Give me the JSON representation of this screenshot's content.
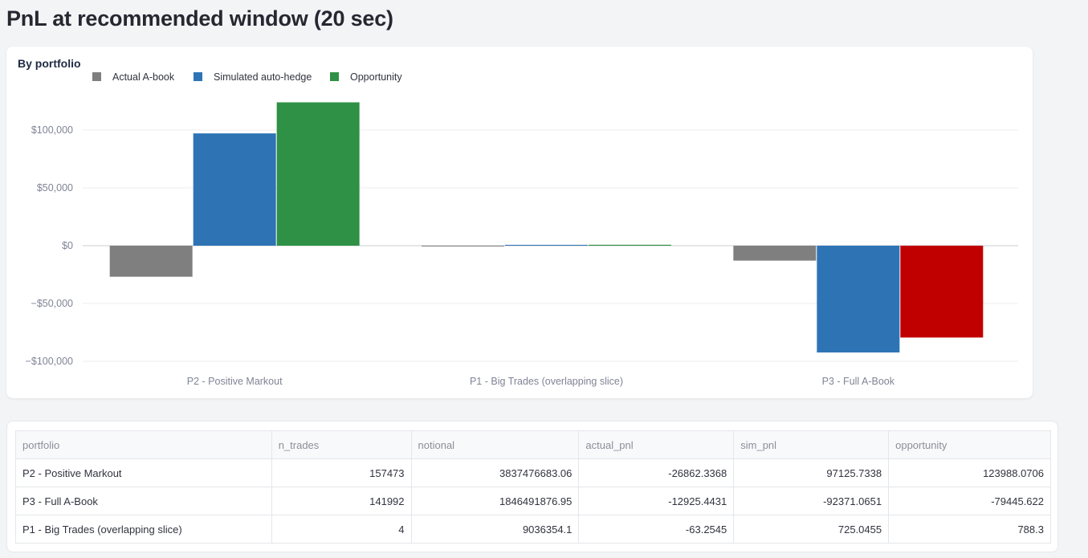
{
  "page": {
    "title": "PnL at recommended window (20 sec)"
  },
  "chart_data": {
    "type": "bar",
    "title": "By portfolio",
    "categories": [
      "P2 - Positive Markout",
      "P1 - Big Trades (overlapping slice)",
      "P3 - Full A-Book"
    ],
    "series": [
      {
        "name": "Actual A-book",
        "values": [
          -26862.3368,
          -63.2545,
          -12925.4431
        ]
      },
      {
        "name": "Simulated auto-hedge",
        "values": [
          97125.7338,
          725.0455,
          -92371.0651
        ]
      },
      {
        "name": "Opportunity",
        "values": [
          123988.0706,
          788.3,
          -79445.622
        ]
      }
    ],
    "colors": {
      "Actual A-book": "#7f7f7f",
      "Simulated auto-hedge": "#2e74b5",
      "Opportunity_positive": "#2e9145",
      "Opportunity_negative": "#c00000"
    },
    "yticks": [
      100000,
      50000,
      0,
      -50000,
      -100000
    ],
    "ytick_labels": [
      "$100,000",
      "$50,000",
      "$0",
      "−$50,000",
      "−$100,000"
    ],
    "ylim": [
      -107000,
      128000
    ],
    "legend_position": "top-left",
    "grid": true
  },
  "table": {
    "columns": [
      "portfolio",
      "n_trades",
      "notional",
      "actual_pnl",
      "sim_pnl",
      "opportunity"
    ],
    "rows": [
      [
        "P2 - Positive Markout",
        "157473",
        "3837476683.06",
        "-26862.3368",
        "97125.7338",
        "123988.0706"
      ],
      [
        "P3 - Full A-Book",
        "141992",
        "1846491876.95",
        "-12925.4431",
        "-92371.0651",
        "-79445.622"
      ],
      [
        "P1 - Big Trades (overlapping slice)",
        "4",
        "9036354.1",
        "-63.2545",
        "725.0455",
        "788.3"
      ]
    ]
  }
}
